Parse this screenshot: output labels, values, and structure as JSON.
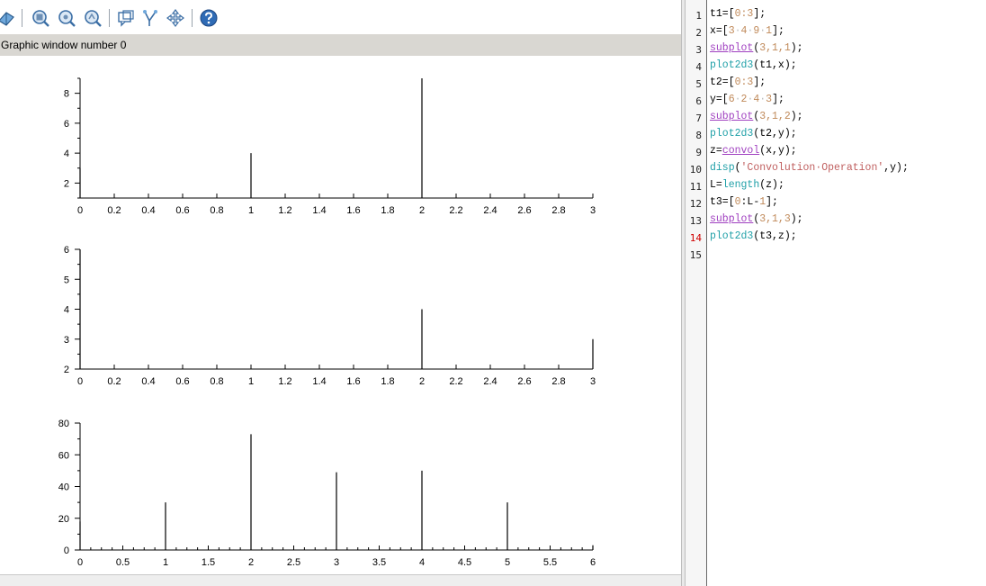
{
  "graphics_window": {
    "title": "Graphic window number 0",
    "toolbar": [
      {
        "icon": "rotate-icon"
      },
      {
        "icon": "zoom-in-icon"
      },
      {
        "icon": "zoom-out-icon"
      },
      {
        "icon": "zoom-reset-icon"
      },
      {
        "icon": "datatip-icon"
      },
      {
        "icon": "graph-edit-icon"
      },
      {
        "icon": "pan-icon"
      },
      {
        "icon": "help-icon"
      }
    ]
  },
  "chart_data": [
    {
      "type": "bar",
      "x": [
        0,
        1,
        2,
        3
      ],
      "values": [
        3,
        4,
        9,
        1
      ],
      "xlim": [
        0,
        3
      ],
      "ylim": [
        1,
        9
      ],
      "xticks": [
        "0",
        "0.2",
        "0.4",
        "0.6",
        "0.8",
        "1",
        "1.2",
        "1.4",
        "1.6",
        "1.8",
        "2",
        "2.2",
        "2.4",
        "2.6",
        "2.8",
        "3"
      ],
      "yticks": [
        "2",
        "4",
        "6",
        "8"
      ]
    },
    {
      "type": "bar",
      "x": [
        0,
        1,
        2,
        3
      ],
      "values": [
        6,
        2,
        4,
        3
      ],
      "xlim": [
        0,
        3
      ],
      "ylim": [
        2,
        6
      ],
      "xticks": [
        "0",
        "0.2",
        "0.4",
        "0.6",
        "0.8",
        "1",
        "1.2",
        "1.4",
        "1.6",
        "1.8",
        "2",
        "2.2",
        "2.4",
        "2.6",
        "2.8",
        "3"
      ],
      "yticks": [
        "2",
        "3",
        "4",
        "5",
        "6"
      ]
    },
    {
      "type": "bar",
      "x": [
        0,
        1,
        2,
        3,
        4,
        5,
        6
      ],
      "values": [
        18,
        30,
        73,
        49,
        50,
        30,
        3
      ],
      "xlim": [
        0,
        6
      ],
      "ylim": [
        0,
        80
      ],
      "xticks": [
        "0",
        "0.5",
        "1",
        "1.5",
        "2",
        "2.5",
        "3",
        "3.5",
        "4",
        "4.5",
        "5",
        "5.5",
        "6"
      ],
      "yticks": [
        "0",
        "20",
        "40",
        "60",
        "80"
      ]
    }
  ],
  "editor": {
    "line_numbers": [
      "1",
      "2",
      "3",
      "4",
      "5",
      "6",
      "7",
      "8",
      "9",
      "10",
      "11",
      "12",
      "13",
      "14",
      "15"
    ],
    "error_line": "14",
    "lines": [
      [
        {
          "t": "t1=[",
          "c": ""
        },
        {
          "t": "0:3",
          "c": "num"
        },
        {
          "t": "];",
          "c": ""
        }
      ],
      [
        {
          "t": "x=[",
          "c": ""
        },
        {
          "t": "3",
          "c": "num"
        },
        {
          "t": "·",
          "c": "sp"
        },
        {
          "t": "4",
          "c": "num"
        },
        {
          "t": "·",
          "c": "sp"
        },
        {
          "t": "9",
          "c": "num"
        },
        {
          "t": "·",
          "c": "sp"
        },
        {
          "t": "1",
          "c": "num"
        },
        {
          "t": "];",
          "c": ""
        }
      ],
      [
        {
          "t": "subplot",
          "c": "mac"
        },
        {
          "t": "(",
          "c": ""
        },
        {
          "t": "3,1,1",
          "c": "num"
        },
        {
          "t": ");",
          "c": ""
        }
      ],
      [
        {
          "t": "plot2d3",
          "c": "fn"
        },
        {
          "t": "(t1,x);",
          "c": ""
        }
      ],
      [
        {
          "t": "t2=[",
          "c": ""
        },
        {
          "t": "0:3",
          "c": "num"
        },
        {
          "t": "];",
          "c": ""
        }
      ],
      [
        {
          "t": "y=[",
          "c": ""
        },
        {
          "t": "6",
          "c": "num"
        },
        {
          "t": "·",
          "c": "sp"
        },
        {
          "t": "2",
          "c": "num"
        },
        {
          "t": "·",
          "c": "sp"
        },
        {
          "t": "4",
          "c": "num"
        },
        {
          "t": "·",
          "c": "sp"
        },
        {
          "t": "3",
          "c": "num"
        },
        {
          "t": "];",
          "c": ""
        }
      ],
      [
        {
          "t": "subplot",
          "c": "mac"
        },
        {
          "t": "(",
          "c": ""
        },
        {
          "t": "3,1,2",
          "c": "num"
        },
        {
          "t": ");",
          "c": ""
        }
      ],
      [
        {
          "t": "plot2d3",
          "c": "fn"
        },
        {
          "t": "(t2,y);",
          "c": ""
        }
      ],
      [
        {
          "t": "z=",
          "c": ""
        },
        {
          "t": "convol",
          "c": "mac"
        },
        {
          "t": "(x,y);",
          "c": ""
        }
      ],
      [
        {
          "t": "disp",
          "c": "fn"
        },
        {
          "t": "(",
          "c": ""
        },
        {
          "t": "'Convolution·Operation'",
          "c": "str"
        },
        {
          "t": ",y);",
          "c": ""
        }
      ],
      [
        {
          "t": "L=",
          "c": ""
        },
        {
          "t": "length",
          "c": "fn"
        },
        {
          "t": "(z);",
          "c": ""
        }
      ],
      [
        {
          "t": "t3=[",
          "c": ""
        },
        {
          "t": "0",
          "c": "num"
        },
        {
          "t": ":L-",
          "c": ""
        },
        {
          "t": "1",
          "c": "num"
        },
        {
          "t": "];",
          "c": ""
        }
      ],
      [
        {
          "t": "subplot",
          "c": "mac"
        },
        {
          "t": "(",
          "c": ""
        },
        {
          "t": "3,1,3",
          "c": "num"
        },
        {
          "t": ");",
          "c": ""
        }
      ],
      [
        {
          "t": "plot2d3",
          "c": "fn"
        },
        {
          "t": "(t3,z);",
          "c": ""
        }
      ],
      []
    ]
  }
}
